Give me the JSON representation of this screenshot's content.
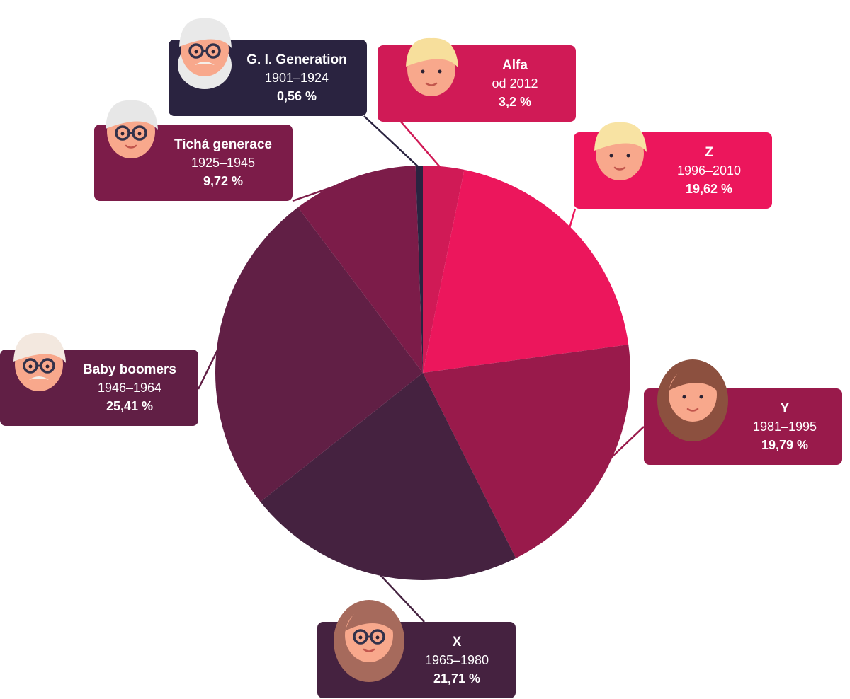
{
  "chart_data": {
    "type": "pie",
    "title": "",
    "categories": [
      "Alfa",
      "Z",
      "Y",
      "X",
      "Baby boomers",
      "Tichá generace",
      "G. I. Generation"
    ],
    "values": [
      3.2,
      19.62,
      19.79,
      21.71,
      25.41,
      9.72,
      0.56
    ],
    "legend_placement": "callouts around pie",
    "slices": [
      {
        "name": "Alfa",
        "years": "od 2012",
        "value": 3.2,
        "value_label": "3,2 %",
        "color": "#d01a56",
        "avatar": "boy-blond-icon"
      },
      {
        "name": "Z",
        "years": "1996–2010",
        "value": 19.62,
        "value_label": "19,62 %",
        "color": "#ec165c",
        "avatar": "boy-curly-icon"
      },
      {
        "name": "Y",
        "years": "1981–1995",
        "value": 19.79,
        "value_label": "19,79 %",
        "color": "#991a4b",
        "avatar": "woman-longhair-icon"
      },
      {
        "name": "X",
        "years": "1965–1980",
        "value": 21.71,
        "value_label": "21,71 %",
        "color": "#452240",
        "avatar": "woman-glasses-icon"
      },
      {
        "name": "Baby boomers",
        "years": "1946–1964",
        "value": 25.41,
        "value_label": "25,41 %",
        "color": "#611f45",
        "avatar": "man-glasses-mustache-icon"
      },
      {
        "name": "Tichá generace",
        "years": "1925–1945",
        "value": 9.72,
        "value_label": "9,72 %",
        "color": "#7c1c49",
        "avatar": "grandma-glasses-icon"
      },
      {
        "name": "G. I. Generation",
        "years": "1901–1924",
        "value": 0.56,
        "value_label": "0,56 %",
        "color": "#2a2340",
        "avatar": "old-man-beard-icon"
      }
    ]
  }
}
